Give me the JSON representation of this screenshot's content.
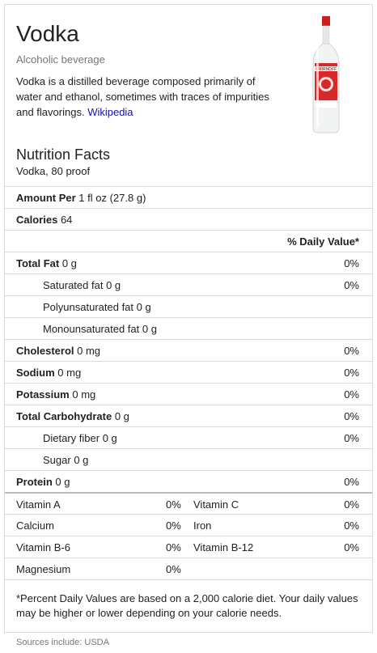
{
  "header": {
    "title": "Vodka",
    "subtitle": "Alcoholic beverage",
    "description": "Vodka is a distilled beverage composed primarily of water and ethanol, sometimes with traces of impurities and flavorings.",
    "source_link": "Wikipedia",
    "image_icon": "vodka-bottle-icon",
    "bottle_label": "SMIRNOFF"
  },
  "nutrition": {
    "title": "Nutrition Facts",
    "subtitle": "Vodka, 80 proof",
    "amount_per_label": "Amount Per",
    "amount_per_value": "1 fl oz (27.8 g)",
    "calories_label": "Calories",
    "calories_value": "64",
    "daily_value_header": "% Daily Value*",
    "rows": [
      {
        "label": "Total Fat",
        "value": "0 g",
        "pct": "0%"
      },
      {
        "label": "Saturated fat",
        "value": "0 g",
        "pct": "0%"
      },
      {
        "label": "Polyunsaturated fat",
        "value": "0 g",
        "pct": ""
      },
      {
        "label": "Monounsaturated fat",
        "value": "0 g",
        "pct": ""
      },
      {
        "label": "Cholesterol",
        "value": "0 mg",
        "pct": "0%"
      },
      {
        "label": "Sodium",
        "value": "0 mg",
        "pct": "0%"
      },
      {
        "label": "Potassium",
        "value": "0 mg",
        "pct": "0%"
      },
      {
        "label": "Total Carbohydrate",
        "value": "0 g",
        "pct": "0%"
      },
      {
        "label": "Dietary fiber",
        "value": "0 g",
        "pct": "0%"
      },
      {
        "label": "Sugar",
        "value": "0 g",
        "pct": ""
      },
      {
        "label": "Protein",
        "value": "0 g",
        "pct": "0%"
      }
    ],
    "vitamins": [
      {
        "name1": "Vitamin A",
        "pct1": "0%",
        "name2": "Vitamin C",
        "pct2": "0%"
      },
      {
        "name1": "Calcium",
        "pct1": "0%",
        "name2": "Iron",
        "pct2": "0%"
      },
      {
        "name1": "Vitamin B-6",
        "pct1": "0%",
        "name2": "Vitamin B-12",
        "pct2": "0%"
      },
      {
        "name1": "Magnesium",
        "pct1": "0%",
        "name2": "",
        "pct2": ""
      }
    ],
    "footnote": "*Percent Daily Values are based on a 2,000 calorie diet. Your daily values may be higher or lower depending on your calorie needs."
  },
  "sources": "Sources include: USDA",
  "colors": {
    "link": "#1a0dab",
    "bottle_red": "#d42a2a"
  }
}
